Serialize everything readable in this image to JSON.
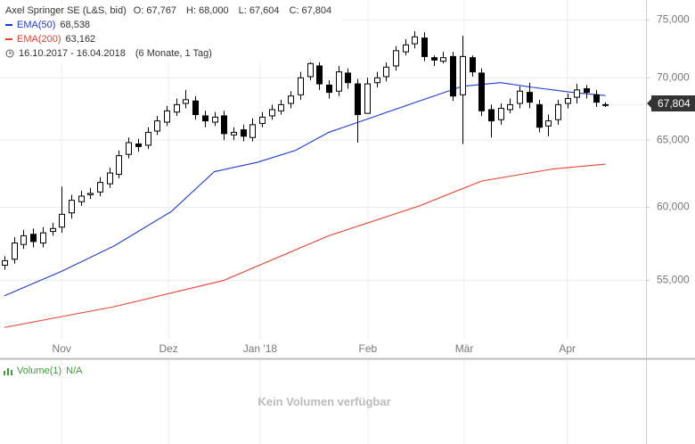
{
  "chart_data": {
    "type": "candlestick",
    "title": "Axel Springer SE (L&S, bid)",
    "quote": [
      {
        "name": "O:",
        "label": "67,767"
      },
      {
        "name": "H:",
        "label": "68,000"
      },
      {
        "name": "L:",
        "label": "67,604"
      },
      {
        "name": "C:",
        "label": "67,804"
      }
    ],
    "period": "16.10.2017 - 16.04.2018",
    "interval": "(6 Monate, 1 Tag)",
    "x": [
      0,
      2,
      4,
      6,
      8,
      10,
      12,
      14,
      16,
      18,
      20,
      22,
      24,
      26,
      28,
      30,
      32,
      34,
      36,
      38,
      40,
      42,
      44,
      46,
      48,
      50,
      52,
      54,
      56,
      58,
      60,
      62,
      64,
      66,
      68,
      70,
      72,
      74,
      76,
      78,
      80,
      82,
      84,
      86,
      88,
      90,
      92,
      94,
      96,
      98,
      100,
      102,
      104,
      106,
      108,
      110,
      112,
      114,
      116,
      118,
      120,
      122,
      124,
      126
    ],
    "open": [
      56.0,
      56.4,
      57.4,
      58.1,
      57.5,
      58.3,
      58.6,
      59.6,
      60.4,
      60.9,
      61.1,
      61.7,
      62.4,
      63.9,
      64.7,
      64.6,
      65.7,
      66.4,
      67.2,
      67.9,
      68.1,
      66.9,
      66.4,
      66.9,
      65.4,
      65.8,
      65.2,
      66.3,
      66.9,
      67.3,
      67.9,
      68.6,
      70.1,
      71.0,
      69.4,
      68.9,
      70.4,
      69.5,
      67.1,
      69.6,
      70.1,
      71.0,
      72.2,
      72.9,
      73.4,
      71.7,
      71.4,
      71.8,
      68.6,
      71.7,
      70.4,
      67.4,
      66.6,
      67.4,
      67.9,
      68.8,
      67.8,
      66.1,
      66.6,
      67.9,
      68.4,
      69.1,
      68.6,
      67.767
    ],
    "high": [
      56.6,
      57.9,
      58.4,
      58.5,
      58.6,
      58.9,
      61.5,
      60.9,
      61.2,
      61.4,
      62.2,
      62.9,
      64.2,
      65.2,
      65.1,
      66.0,
      66.9,
      67.7,
      68.3,
      69.0,
      68.5,
      67.3,
      67.2,
      67.3,
      66.0,
      66.2,
      66.7,
      67.2,
      67.8,
      68.2,
      68.9,
      70.5,
      71.7,
      71.4,
      69.8,
      71.0,
      70.8,
      69.9,
      70.0,
      70.5,
      71.3,
      72.7,
      73.3,
      74.0,
      73.9,
      71.9,
      72.2,
      72.2,
      73.6,
      71.9,
      70.8,
      67.8,
      67.9,
      68.3,
      69.3,
      69.6,
      68.2,
      67.0,
      68.2,
      68.7,
      69.5,
      69.4,
      69.0,
      68.0
    ],
    "low": [
      55.7,
      56.1,
      57.1,
      57.2,
      57.2,
      58.0,
      58.2,
      59.2,
      60.1,
      60.6,
      60.8,
      61.4,
      62.1,
      63.6,
      64.1,
      64.3,
      65.4,
      66.1,
      66.9,
      67.5,
      66.6,
      66.0,
      66.1,
      65.0,
      65.0,
      64.9,
      64.9,
      66.0,
      66.6,
      67.0,
      67.5,
      68.2,
      69.8,
      69.0,
      68.3,
      68.5,
      69.1,
      64.8,
      67.1,
      69.2,
      69.7,
      70.6,
      71.9,
      72.5,
      71.4,
      71.0,
      71.2,
      68.1,
      64.7,
      70.1,
      66.9,
      65.2,
      66.2,
      67.1,
      67.5,
      67.5,
      65.6,
      65.3,
      66.2,
      67.5,
      67.9,
      68.3,
      67.6,
      67.604
    ],
    "close": [
      56.3,
      57.5,
      58.0,
      57.6,
      58.2,
      58.5,
      59.5,
      60.5,
      60.8,
      61.0,
      61.8,
      62.5,
      63.8,
      64.8,
      64.5,
      65.6,
      66.5,
      67.3,
      67.8,
      68.2,
      67.0,
      66.5,
      66.8,
      65.5,
      65.6,
      65.3,
      66.2,
      66.8,
      67.4,
      67.8,
      68.5,
      70.0,
      71.2,
      69.5,
      68.8,
      70.5,
      69.6,
      67.0,
      69.5,
      70.0,
      70.9,
      72.3,
      72.8,
      73.5,
      71.8,
      71.5,
      71.7,
      68.5,
      71.8,
      70.5,
      67.3,
      66.5,
      67.5,
      67.8,
      68.9,
      68.0,
      66.0,
      66.5,
      67.8,
      68.3,
      69.0,
      68.8,
      68.0,
      67.804
    ],
    "up_color": "#ffffff",
    "down_color": "#000000",
    "last_label": "67,804",
    "overlays": [
      {
        "name": "EMA(50)",
        "value_label": "68,538",
        "color": "#1c3ad6",
        "x": [
          0,
          12,
          23,
          35,
          44,
          53,
          61,
          68,
          78,
          87,
          96,
          104,
          111,
          119,
          126
        ],
        "values": [
          54.0,
          55.6,
          57.3,
          59.7,
          62.6,
          63.3,
          64.2,
          65.6,
          66.9,
          68.1,
          69.3,
          69.6,
          69.2,
          68.8,
          68.538
        ]
      },
      {
        "name": "EMA(200)",
        "value_label": "63,162",
        "color": "#e8412c",
        "x": [
          0,
          23,
          46,
          68,
          87,
          100,
          115,
          126
        ],
        "values": [
          52.0,
          53.3,
          55.0,
          58.0,
          60.1,
          61.9,
          62.8,
          63.162
        ]
      }
    ],
    "xlim": [
      -0.93,
      134.5
    ],
    "xticks": [
      {
        "value": 12,
        "label": "Nov"
      },
      {
        "value": 34.4,
        "label": "Dez"
      },
      {
        "value": 53.6,
        "label": "Jan '18"
      },
      {
        "value": 76.2,
        "label": "Feb"
      },
      {
        "value": 96.4,
        "label": "Mär"
      },
      {
        "value": 118,
        "label": "Apr"
      }
    ],
    "ylim": [
      51.3,
      76.8
    ],
    "yticks": [
      {
        "value": 55,
        "label": "55,000"
      },
      {
        "value": 60,
        "label": "60,000"
      },
      {
        "value": 65,
        "label": "65,000"
      },
      {
        "value": 70,
        "label": "70,000"
      },
      {
        "value": 75,
        "label": "75,000"
      }
    ],
    "log_scale": true,
    "grid": true,
    "volume": {
      "title": "Volume(1)",
      "value_label": "N/A",
      "message": "Kein Volumen verfügbar",
      "color": "#3c9a3c"
    }
  }
}
